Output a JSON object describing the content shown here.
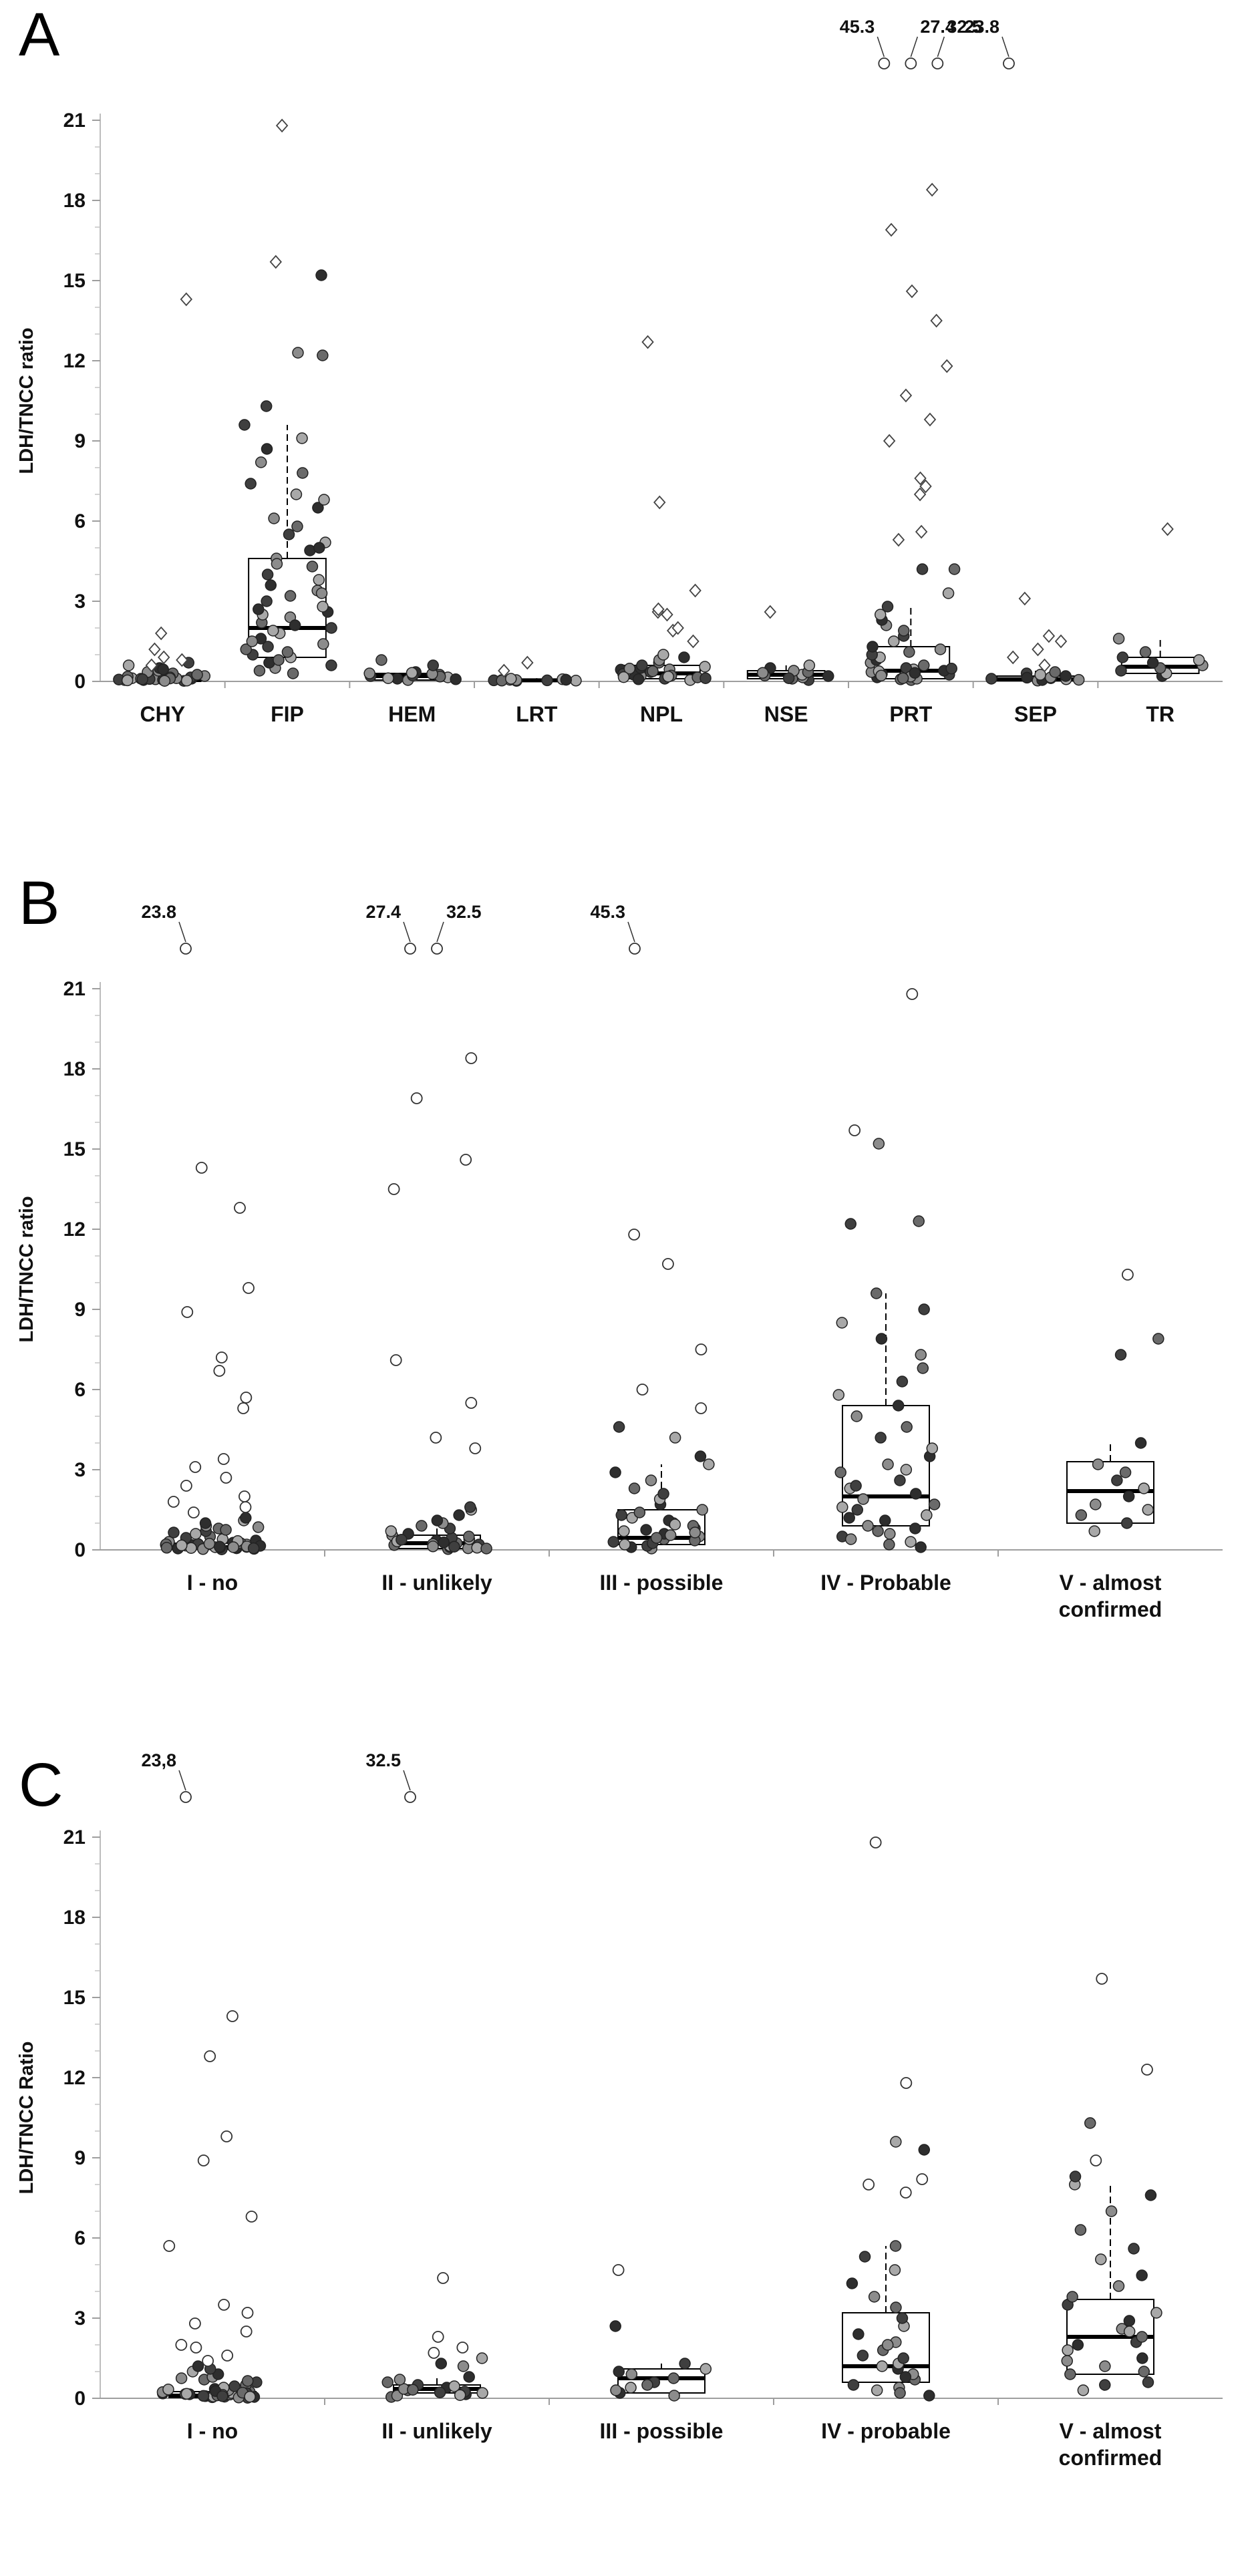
{
  "chart_data": [
    {
      "id": "A",
      "type": "box-strip",
      "panel_label": "A",
      "ylabel": "LDH/TNCC ratio",
      "ylim": [
        0,
        21
      ],
      "yticks": [
        0,
        3,
        6,
        9,
        12,
        15,
        18,
        21
      ],
      "categories": [
        {
          "label": "CHY",
          "box": [
            0.02,
            0.05,
            0.15
          ],
          "mean": 0.8,
          "whisker_high": 0.3,
          "points": [
            0.02,
            0.05,
            0.08,
            0.1,
            0.12,
            0.15,
            0.18,
            0.2,
            0.05,
            0.03,
            0.07,
            0.1,
            0.12,
            0.06,
            0.04,
            0.09,
            0.3,
            0.4,
            0.5,
            0.6,
            0.7,
            0.25,
            0.35,
            0.45,
            0.15,
            0.08,
            0.11,
            0.02
          ],
          "outliers": [
            1.8,
            1.2,
            0.9,
            0.8,
            0.6,
            14.3
          ]
        },
        {
          "label": "FIP",
          "box": [
            0.9,
            2.0,
            4.6
          ],
          "mean": 3.8,
          "whisker_high": 9.6,
          "points": [
            0.3,
            0.5,
            0.7,
            0.9,
            1.0,
            1.2,
            1.4,
            1.6,
            1.8,
            2.0,
            2.2,
            2.4,
            2.6,
            2.8,
            3.0,
            3.2,
            3.4,
            3.6,
            3.8,
            4.0,
            4.3,
            4.6,
            4.9,
            5.2,
            5.5,
            5.8,
            6.1,
            6.5,
            7.0,
            7.4,
            7.8,
            8.2,
            8.7,
            9.1,
            9.6,
            1.1,
            1.5,
            2.1,
            2.5,
            0.6,
            0.8,
            3.3,
            2.7,
            1.9,
            1.3,
            0.4,
            4.4,
            5.0,
            6.8,
            10.3,
            12.2,
            12.3,
            15.2
          ],
          "outliers": [
            15.7,
            20.8
          ]
        },
        {
          "label": "HEM",
          "box": [
            0.05,
            0.2,
            0.3
          ],
          "mean": 0.3,
          "whisker_high": 0.4,
          "points": [
            0.05,
            0.1,
            0.15,
            0.2,
            0.25,
            0.3,
            0.35,
            0.12,
            0.22,
            0.18,
            0.28,
            0.08,
            0.32,
            0.6,
            0.8
          ],
          "outliers": []
        },
        {
          "label": "LRT",
          "box": [
            0.02,
            0.04,
            0.08
          ],
          "mean": 0.1,
          "whisker_high": 0.12,
          "points": [
            0.02,
            0.03,
            0.04,
            0.05,
            0.06,
            0.07,
            0.08,
            0.04,
            0.03,
            0.05,
            0.06,
            0.1
          ],
          "outliers": [
            0.4,
            0.7
          ]
        },
        {
          "label": "NPL",
          "box": [
            0.1,
            0.3,
            0.6
          ],
          "mean": 0.8,
          "whisker_high": 1.0,
          "points": [
            0.05,
            0.1,
            0.15,
            0.2,
            0.25,
            0.3,
            0.35,
            0.4,
            0.45,
            0.5,
            0.55,
            0.6,
            0.7,
            0.8,
            0.9,
            1.0,
            0.12,
            0.22,
            0.33,
            0.44,
            0.18,
            0.28,
            0.38,
            0.48,
            0.08,
            0.16
          ],
          "outliers": [
            1.5,
            1.9,
            2.0,
            2.5,
            2.6,
            2.7,
            3.4,
            6.7,
            12.7
          ]
        },
        {
          "label": "NSE",
          "box": [
            0.1,
            0.25,
            0.4
          ],
          "mean": 0.35,
          "whisker_high": 0.6,
          "points": [
            0.05,
            0.1,
            0.15,
            0.2,
            0.25,
            0.3,
            0.35,
            0.4,
            0.5,
            0.6,
            0.12,
            0.22,
            0.32
          ],
          "outliers": [
            2.6
          ]
        },
        {
          "label": "PRT",
          "box": [
            0.1,
            0.4,
            1.3
          ],
          "mean": 1.2,
          "whisker_high": 2.8,
          "points": [
            0.05,
            0.1,
            0.15,
            0.2,
            0.25,
            0.3,
            0.35,
            0.4,
            0.45,
            0.5,
            0.6,
            0.7,
            0.8,
            0.9,
            1.0,
            1.1,
            1.2,
            1.3,
            1.5,
            1.7,
            1.9,
            2.1,
            2.3,
            2.5,
            2.8,
            0.08,
            0.18,
            0.28,
            0.38,
            0.48,
            0.12,
            0.22,
            0.32,
            3.3,
            4.2,
            4.2
          ],
          "outliers": [
            5.3,
            5.6,
            7.0,
            7.3,
            7.6,
            9.0,
            9.8,
            10.7,
            11.8,
            13.5,
            14.6,
            16.9,
            18.4
          ]
        },
        {
          "label": "SEP",
          "box": [
            0.03,
            0.08,
            0.2
          ],
          "mean": 0.2,
          "whisker_high": 0.4,
          "points": [
            0.03,
            0.05,
            0.08,
            0.1,
            0.12,
            0.15,
            0.2,
            0.25,
            0.3,
            0.35,
            0.06,
            0.14
          ],
          "outliers": [
            0.6,
            0.9,
            1.2,
            1.5,
            1.7,
            3.1
          ]
        },
        {
          "label": "TR",
          "box": [
            0.3,
            0.55,
            0.9
          ],
          "mean": 0.6,
          "whisker_high": 1.6,
          "points": [
            0.2,
            0.3,
            0.4,
            0.5,
            0.6,
            0.7,
            0.8,
            0.9,
            1.1,
            1.6
          ],
          "outliers": [
            5.7
          ]
        }
      ],
      "offscale": [
        {
          "category": "PRT",
          "value": 45.3,
          "label": "45.3"
        },
        {
          "category": "PRT",
          "value": 27.4,
          "label": "27.4"
        },
        {
          "category": "PRT",
          "value": 32.5,
          "label": "32.5"
        },
        {
          "category": "SEP",
          "value": 23.8,
          "label": "23.8"
        }
      ]
    },
    {
      "id": "B",
      "type": "box-strip",
      "panel_label": "B",
      "ylabel": "LDH/TNCC ratio",
      "ylim": [
        0,
        21
      ],
      "yticks": [
        0,
        3,
        6,
        9,
        12,
        15,
        18,
        21
      ],
      "categories": [
        {
          "label": "I - no",
          "box": [
            0.03,
            0.1,
            0.25
          ],
          "mean": 0.6,
          "whisker_high": 0.5,
          "points": [
            0.02,
            0.04,
            0.06,
            0.08,
            0.1,
            0.12,
            0.14,
            0.16,
            0.18,
            0.2,
            0.22,
            0.25,
            0.3,
            0.35,
            0.4,
            0.45,
            0.5,
            0.03,
            0.05,
            0.07,
            0.09,
            0.11,
            0.13,
            0.15,
            0.17,
            0.19,
            0.21,
            0.23,
            0.27,
            0.33,
            0.06,
            0.08,
            0.1,
            0.12,
            0.6,
            0.7,
            0.8,
            0.9,
            1.0,
            1.1,
            0.65,
            0.75,
            0.85,
            1.2
          ],
          "outliers": [
            1.4,
            1.6,
            1.8,
            2.0,
            2.4,
            2.7,
            3.1,
            3.4,
            5.3,
            5.7,
            6.7,
            7.2,
            8.9,
            9.8,
            12.8,
            14.3
          ]
        },
        {
          "label": "II - unlikely",
          "box": [
            0.05,
            0.25,
            0.55
          ],
          "mean": 0.7,
          "whisker_high": 1.1,
          "points": [
            0.03,
            0.06,
            0.1,
            0.15,
            0.2,
            0.25,
            0.3,
            0.35,
            0.4,
            0.45,
            0.5,
            0.55,
            0.6,
            0.7,
            0.8,
            0.9,
            1.0,
            1.1,
            0.08,
            0.12,
            0.18,
            0.22,
            0.28,
            0.32,
            0.38,
            0.05,
            0.13,
            1.3,
            1.5,
            1.6
          ],
          "outliers": [
            3.8,
            4.2,
            5.5,
            7.1,
            13.5,
            14.6,
            16.9,
            18.4
          ]
        },
        {
          "label": "III - possible",
          "box": [
            0.2,
            0.45,
            1.5
          ],
          "mean": 1.3,
          "whisker_high": 3.2,
          "points": [
            0.05,
            0.1,
            0.2,
            0.3,
            0.4,
            0.5,
            0.6,
            0.7,
            0.8,
            0.9,
            1.0,
            1.1,
            1.2,
            1.3,
            1.4,
            1.5,
            1.7,
            1.9,
            2.1,
            2.3,
            2.6,
            2.9,
            3.2,
            0.15,
            0.35,
            0.55,
            0.75,
            0.95,
            0.25,
            0.45,
            0.65,
            3.5,
            4.2,
            4.6
          ],
          "outliers": [
            5.3,
            6.0,
            7.5,
            10.7,
            11.8
          ]
        },
        {
          "label": "IV - Probable",
          "box": [
            0.9,
            2.0,
            5.4
          ],
          "mean": 3.9,
          "whisker_high": 9.6,
          "points": [
            0.1,
            0.3,
            0.5,
            0.7,
            0.9,
            1.1,
            1.3,
            1.5,
            1.7,
            1.9,
            2.1,
            2.3,
            2.6,
            2.9,
            3.2,
            3.5,
            3.8,
            4.2,
            4.6,
            5.0,
            5.4,
            5.8,
            6.3,
            6.8,
            7.3,
            7.9,
            8.5,
            9.0,
            9.6,
            0.6,
            1.2,
            1.6,
            2.4,
            0.2,
            0.4,
            0.8,
            3.0,
            12.2,
            12.3,
            15.2
          ],
          "outliers": [
            15.7,
            20.8
          ]
        },
        {
          "label": "V - almost confirmed",
          "label_lines": [
            "V - almost",
            "confirmed"
          ],
          "box": [
            1.0,
            2.2,
            3.3
          ],
          "mean": 2.3,
          "whisker_high": 4.0,
          "points": [
            0.7,
            1.0,
            1.3,
            1.7,
            2.0,
            2.3,
            2.6,
            2.9,
            3.2,
            4.0,
            1.5,
            7.3,
            7.9
          ],
          "outliers": [
            10.3
          ]
        }
      ],
      "offscale": [
        {
          "category": "I - no",
          "value": 23.8,
          "label": "23.8"
        },
        {
          "category": "II - unlikely",
          "value": 27.4,
          "label": "27.4"
        },
        {
          "category": "II - unlikely",
          "value": 32.5,
          "label": "32.5"
        },
        {
          "category": "III - possible",
          "value": 45.3,
          "label": "45.3"
        }
      ]
    },
    {
      "id": "C",
      "type": "box-strip",
      "panel_label": "C",
      "ylabel": "LDH/TNCC Ratio",
      "ylim": [
        0,
        21
      ],
      "yticks": [
        0,
        3,
        6,
        9,
        12,
        15,
        18,
        21
      ],
      "categories": [
        {
          "label": "I - no",
          "box": [
            0.03,
            0.1,
            0.25
          ],
          "mean": 0.6,
          "whisker_high": 0.5,
          "points": [
            0.02,
            0.04,
            0.06,
            0.08,
            0.1,
            0.12,
            0.14,
            0.16,
            0.18,
            0.2,
            0.22,
            0.25,
            0.3,
            0.35,
            0.4,
            0.45,
            0.5,
            0.03,
            0.05,
            0.07,
            0.09,
            0.11,
            0.13,
            0.15,
            0.17,
            0.19,
            0.21,
            0.23,
            0.27,
            0.33,
            0.6,
            0.7,
            0.8,
            0.9,
            1.0,
            1.1,
            0.65,
            0.75,
            1.2,
            0.06,
            0.08
          ],
          "outliers": [
            1.4,
            1.6,
            1.9,
            2.0,
            2.5,
            2.8,
            3.2,
            3.5,
            5.7,
            6.8,
            8.9,
            9.8,
            12.8,
            14.3
          ]
        },
        {
          "label": "II - unlikely",
          "box": [
            0.2,
            0.35,
            0.5
          ],
          "mean": 0.5,
          "whisker_high": 0.8,
          "points": [
            0.05,
            0.1,
            0.15,
            0.2,
            0.25,
            0.3,
            0.35,
            0.4,
            0.45,
            0.5,
            0.6,
            0.7,
            0.8,
            0.12,
            0.22,
            0.32,
            1.2,
            1.3,
            1.5
          ],
          "outliers": [
            1.7,
            1.9,
            2.3,
            4.5
          ]
        },
        {
          "label": "III - possible",
          "box": [
            0.2,
            0.75,
            1.1
          ],
          "mean": 0.9,
          "whisker_high": 1.3,
          "points": [
            0.1,
            0.2,
            0.4,
            0.6,
            0.75,
            0.9,
            1.0,
            1.1,
            1.3,
            0.5,
            0.3,
            2.7
          ],
          "outliers": [
            4.8
          ]
        },
        {
          "label": "IV - probable",
          "box": [
            0.6,
            1.2,
            3.2
          ],
          "mean": 2.3,
          "whisker_high": 5.7,
          "points": [
            0.1,
            0.3,
            0.5,
            0.7,
            0.9,
            1.1,
            1.3,
            1.5,
            1.8,
            2.1,
            2.4,
            2.7,
            3.0,
            3.4,
            3.8,
            4.3,
            4.8,
            5.3,
            5.7,
            0.4,
            0.8,
            1.2,
            1.6,
            0.2,
            2.0,
            9.3,
            9.6
          ],
          "outliers": [
            7.7,
            8.0,
            8.2,
            11.8,
            20.8
          ]
        },
        {
          "label": "V - almost confirmed",
          "label_lines": [
            "V - almost",
            "confirmed"
          ],
          "box": [
            0.9,
            2.3,
            3.7
          ],
          "mean": 2.6,
          "whisker_high": 8.0,
          "points": [
            0.3,
            0.6,
            0.9,
            1.2,
            1.5,
            1.8,
            2.1,
            2.3,
            2.6,
            2.9,
            3.2,
            3.5,
            3.8,
            4.2,
            4.6,
            5.2,
            5.6,
            6.3,
            7.0,
            7.6,
            8.0,
            8.3,
            1.0,
            1.4,
            2.0,
            2.5,
            0.5,
            10.3
          ],
          "outliers": [
            8.9,
            12.3,
            15.7
          ]
        }
      ],
      "offscale": [
        {
          "category": "I - no",
          "value": 23.8,
          "label": "23,8"
        },
        {
          "category": "II - unlikely",
          "value": 32.5,
          "label": "32.5"
        }
      ]
    }
  ]
}
